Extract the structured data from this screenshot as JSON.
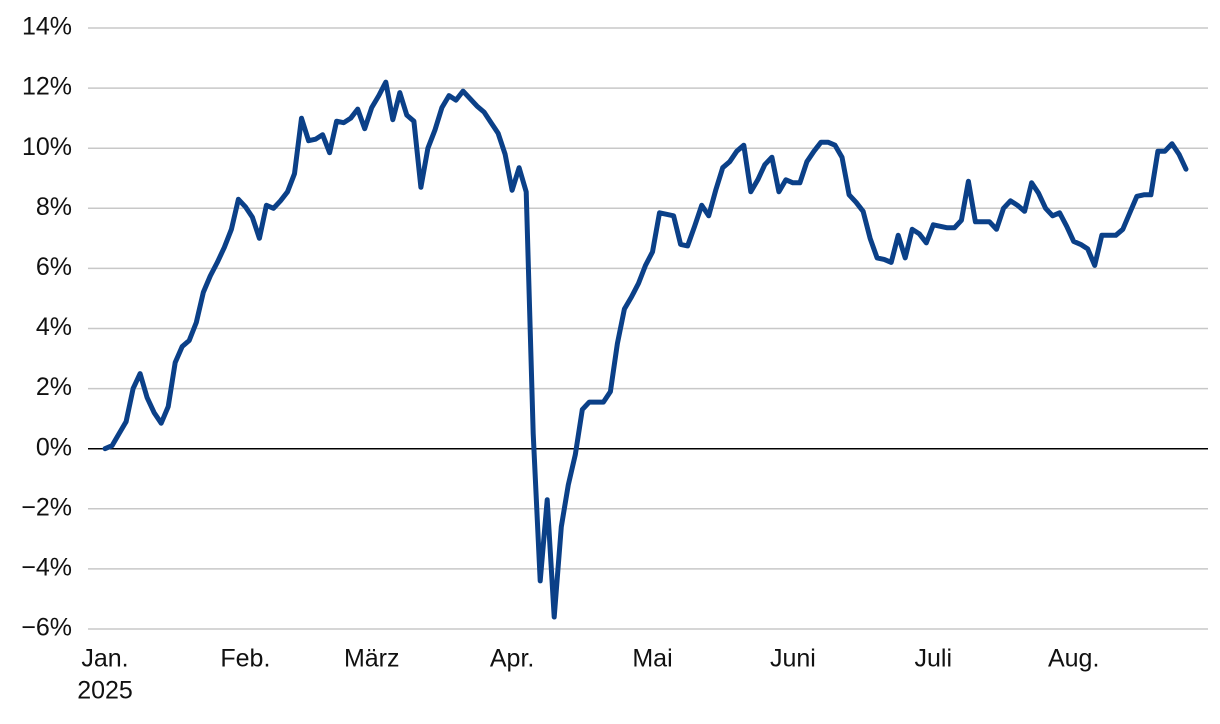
{
  "chart_data": {
    "type": "line",
    "categories": [
      "Jan.",
      null,
      null,
      null,
      null,
      null,
      null,
      null,
      null,
      null,
      null,
      null,
      null,
      null,
      null,
      null,
      null,
      null,
      null,
      null,
      "Feb.",
      null,
      null,
      null,
      null,
      null,
      null,
      null,
      null,
      null,
      null,
      null,
      null,
      null,
      null,
      null,
      null,
      null,
      "März",
      null,
      null,
      null,
      null,
      null,
      null,
      null,
      null,
      null,
      null,
      null,
      null,
      null,
      null,
      null,
      null,
      null,
      null,
      null,
      "Apr.",
      null,
      null,
      null,
      null,
      null,
      null,
      null,
      null,
      null,
      null,
      null,
      null,
      null,
      null,
      null,
      null,
      null,
      null,
      null,
      "Mai",
      null,
      null,
      null,
      null,
      null,
      null,
      null,
      null,
      null,
      null,
      null,
      null,
      null,
      null,
      null,
      null,
      null,
      null,
      null,
      "Juni",
      null,
      null,
      null,
      null,
      null,
      null,
      null,
      null,
      null,
      null,
      null,
      null,
      null,
      null,
      null,
      null,
      null,
      null,
      null,
      "Juli",
      null,
      null,
      null,
      null,
      null,
      null,
      null,
      null,
      null,
      null,
      null,
      null,
      null,
      null,
      null,
      null,
      null,
      null,
      null,
      "Aug.",
      null,
      null,
      null,
      null,
      null,
      null,
      null,
      null,
      null,
      null,
      null,
      null,
      null,
      null,
      null,
      null
    ],
    "year_label": "2025",
    "series": [
      {
        "color": "#0b4088",
        "values": [
          0,
          0.1,
          0.5,
          0.9,
          2.0,
          2.5,
          1.7,
          1.2,
          0.85,
          1.4,
          2.87,
          3.4,
          3.6,
          4.2,
          5.2,
          5.75,
          6.2,
          6.7,
          7.3,
          8.3,
          8.05,
          7.7,
          7.0,
          8.1,
          8.0,
          8.25,
          8.55,
          9.15,
          11.0,
          10.25,
          10.3,
          10.45,
          9.85,
          10.9,
          10.85,
          11.0,
          11.3,
          10.65,
          11.35,
          11.75,
          12.2,
          10.95,
          11.85,
          11.1,
          10.9,
          8.7,
          10.0,
          10.6,
          11.35,
          11.75,
          11.6,
          11.9,
          11.65,
          11.4,
          11.2,
          10.85,
          10.5,
          9.8,
          8.6,
          9.35,
          8.55,
          0.5,
          -4.4,
          -1.7,
          -5.6,
          -2.6,
          -1.2,
          -0.2,
          1.3,
          1.55,
          1.55,
          1.55,
          1.9,
          3.5,
          4.65,
          5.05,
          5.5,
          6.1,
          6.55,
          7.85,
          7.8,
          7.75,
          6.8,
          6.75,
          7.4,
          8.1,
          7.75,
          8.6,
          9.35,
          9.55,
          9.9,
          10.1,
          8.55,
          8.95,
          9.45,
          9.7,
          8.55,
          8.95,
          8.85,
          8.85,
          9.55,
          9.9,
          10.2,
          10.2,
          10.1,
          9.7,
          8.45,
          8.2,
          7.9,
          7.0,
          6.35,
          6.3,
          6.2,
          7.1,
          6.35,
          7.3,
          7.15,
          6.85,
          7.45,
          7.4,
          7.35,
          7.35,
          7.6,
          8.9,
          7.55,
          7.55,
          7.55,
          7.3,
          8.0,
          8.25,
          8.1,
          7.9,
          8.85,
          8.5,
          8.0,
          7.75,
          7.85,
          7.4,
          6.9,
          6.8,
          6.65,
          6.1,
          7.1,
          7.1,
          7.1,
          7.3,
          7.85,
          8.4,
          8.45,
          8.45,
          9.9,
          9.9,
          10.15,
          9.8,
          9.3
        ]
      }
    ],
    "ylim": [
      -6,
      14
    ],
    "yticks": [
      {
        "value": -6,
        "label": "−6%"
      },
      {
        "value": -4,
        "label": "−4%"
      },
      {
        "value": -2,
        "label": "−2%"
      },
      {
        "value": 0,
        "label": "0%"
      },
      {
        "value": 2,
        "label": "2%"
      },
      {
        "value": 4,
        "label": "4%"
      },
      {
        "value": 6,
        "label": "6%"
      },
      {
        "value": 8,
        "label": "8%"
      },
      {
        "value": 10,
        "label": "10%"
      },
      {
        "value": 12,
        "label": "12%"
      },
      {
        "value": 14,
        "label": "14%"
      }
    ],
    "grid": true,
    "zero_line": true
  }
}
